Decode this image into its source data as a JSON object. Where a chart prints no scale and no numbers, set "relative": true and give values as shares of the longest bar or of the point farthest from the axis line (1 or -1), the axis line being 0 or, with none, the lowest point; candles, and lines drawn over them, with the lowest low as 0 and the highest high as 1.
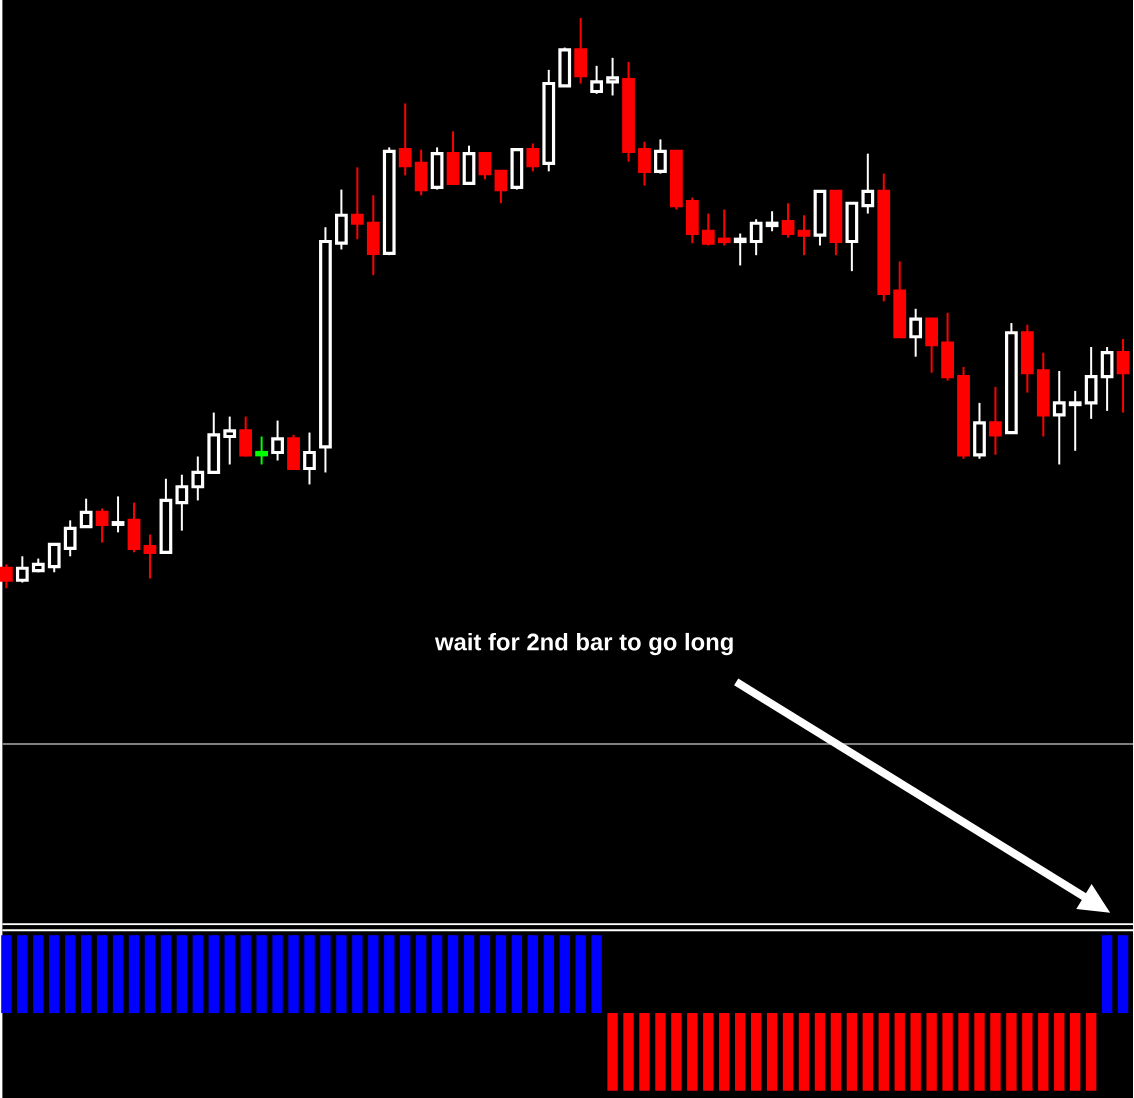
{
  "chart_data": [
    {
      "type": "candlestick",
      "relative": true,
      "categories": [
        null,
        null,
        null,
        null,
        null,
        null,
        null,
        null,
        null,
        null,
        null,
        null,
        null,
        null,
        null,
        null,
        null,
        null,
        null,
        null,
        null,
        null,
        null,
        null,
        null,
        null,
        null,
        null,
        null,
        null,
        null,
        null,
        null,
        null,
        null,
        null,
        null,
        null,
        null,
        null,
        null,
        null,
        null,
        null,
        null,
        null,
        null,
        null,
        null,
        null,
        null,
        null,
        null,
        null,
        null,
        null,
        null,
        null,
        null,
        null,
        null,
        null,
        null,
        null,
        null,
        null,
        null,
        null,
        null,
        null,
        null
      ],
      "ohlc": [
        [
          0.035,
          0.042,
          0,
          0.014
        ],
        [
          0.014,
          0.056,
          0.01,
          0.035
        ],
        [
          0.031,
          0.052,
          0.028,
          0.042
        ],
        [
          0.038,
          0.077,
          0.028,
          0.077
        ],
        [
          0.07,
          0.119,
          0.056,
          0.105
        ],
        [
          0.108,
          0.157,
          0.108,
          0.133
        ],
        [
          0.133,
          0.14,
          0.08,
          0.112
        ],
        [
          0.112,
          0.161,
          0.098,
          0.115
        ],
        [
          0.119,
          0.15,
          0.063,
          0.07
        ],
        [
          0.073,
          0.094,
          0.017,
          0.063
        ],
        [
          0.063,
          0.192,
          0.063,
          0.154
        ],
        [
          0.15,
          0.199,
          0.101,
          0.178
        ],
        [
          0.178,
          0.231,
          0.154,
          0.203
        ],
        [
          0.203,
          0.308,
          0.203,
          0.269
        ],
        [
          0.266,
          0.301,
          0.217,
          0.276
        ],
        [
          0.276,
          0.301,
          0.231,
          0.234
        ],
        [
          0.234,
          0.266,
          0.217,
          0.238
        ],
        [
          0.238,
          0.294,
          0.224,
          0.262
        ],
        [
          0.262,
          0.269,
          0.21,
          0.21
        ],
        [
          0.21,
          0.273,
          0.182,
          0.238
        ],
        [
          0.248,
          0.633,
          0.203,
          0.608
        ],
        [
          0.605,
          0.699,
          0.594,
          0.654
        ],
        [
          0.654,
          0.738,
          0.612,
          0.64
        ],
        [
          0.64,
          0.689,
          0.549,
          0.587
        ],
        [
          0.587,
          0.773,
          0.584,
          0.766
        ],
        [
          0.769,
          0.85,
          0.724,
          0.741
        ],
        [
          0.745,
          0.769,
          0.689,
          0.699
        ],
        [
          0.703,
          0.773,
          0.699,
          0.762
        ],
        [
          0.762,
          0.801,
          0.71,
          0.71
        ],
        [
          0.71,
          0.776,
          0.71,
          0.762
        ],
        [
          0.762,
          0.762,
          0.717,
          0.727
        ],
        [
          0.731,
          0.731,
          0.675,
          0.699
        ],
        [
          0.703,
          0.769,
          0.699,
          0.769
        ],
        [
          0.769,
          0.78,
          0.731,
          0.741
        ],
        [
          0.745,
          0.909,
          0.731,
          0.885
        ],
        [
          0.881,
          0.948,
          0.881,
          0.944
        ],
        [
          0.944,
          1,
          0.885,
          0.899
        ],
        [
          0.871,
          0.916,
          0.867,
          0.888
        ],
        [
          0.888,
          0.93,
          0.864,
          0.895
        ],
        [
          0.892,
          0.923,
          0.748,
          0.766
        ],
        [
          0.769,
          0.783,
          0.706,
          0.731
        ],
        [
          0.731,
          0.787,
          0.727,
          0.766
        ],
        [
          0.766,
          0.766,
          0.664,
          0.671
        ],
        [
          0.678,
          0.685,
          0.605,
          0.622
        ],
        [
          0.626,
          0.657,
          0.601,
          0.605
        ],
        [
          0.612,
          0.664,
          0.601,
          0.608
        ],
        [
          0.608,
          0.622,
          0.566,
          0.612
        ],
        [
          0.608,
          0.647,
          0.584,
          0.64
        ],
        [
          0.636,
          0.661,
          0.626,
          0.64
        ],
        [
          0.643,
          0.675,
          0.615,
          0.622
        ],
        [
          0.626,
          0.654,
          0.584,
          0.619
        ],
        [
          0.619,
          0.696,
          0.601,
          0.696
        ],
        [
          0.696,
          0.696,
          0.584,
          0.608
        ],
        [
          0.608,
          0.675,
          0.556,
          0.675
        ],
        [
          0.671,
          0.762,
          0.657,
          0.696
        ],
        [
          0.696,
          0.727,
          0.503,
          0.517
        ],
        [
          0.521,
          0.573,
          0.441,
          0.441
        ],
        [
          0.441,
          0.49,
          0.406,
          0.472
        ],
        [
          0.472,
          0.472,
          0.378,
          0.427
        ],
        [
          0.43,
          0.483,
          0.364,
          0.371
        ],
        [
          0.371,
          0.388,
          0.227,
          0.234
        ],
        [
          0.234,
          0.325,
          0.227,
          0.29
        ],
        [
          0.29,
          0.353,
          0.234,
          0.269
        ],
        [
          0.273,
          0.465,
          0.273,
          0.448
        ],
        [
          0.448,
          0.462,
          0.343,
          0.378
        ],
        [
          0.381,
          0.413,
          0.266,
          0.304
        ],
        [
          0.304,
          0.381,
          0.217,
          0.325
        ],
        [
          0.322,
          0.346,
          0.241,
          0.325
        ],
        [
          0.325,
          0.423,
          0.297,
          0.371
        ],
        [
          0.371,
          0.423,
          0.311,
          0.413
        ],
        [
          0.413,
          0.437,
          0.308,
          0.378
        ]
      ],
      "colors": [
        "#ff0000",
        "#ffffff",
        "#ffffff",
        "#ffffff",
        "#ffffff",
        "#ffffff",
        "#ff0000",
        "#ffffff",
        "#ff0000",
        "#ff0000",
        "#ffffff",
        "#ffffff",
        "#ffffff",
        "#ffffff",
        "#ffffff",
        "#ff0000",
        "#00ff00",
        "#ffffff",
        "#ff0000",
        "#ffffff",
        "#ffffff",
        "#ffffff",
        "#ff0000",
        "#ff0000",
        "#ffffff",
        "#ff0000",
        "#ff0000",
        "#ffffff",
        "#ff0000",
        "#ffffff",
        "#ff0000",
        "#ff0000",
        "#ffffff",
        "#ff0000",
        "#ffffff",
        "#ffffff",
        "#ff0000",
        "#ffffff",
        "#ffffff",
        "#ff0000",
        "#ff0000",
        "#ffffff",
        "#ff0000",
        "#ff0000",
        "#ff0000",
        "#ff0000",
        "#ffffff",
        "#ffffff",
        "#ffffff",
        "#ff0000",
        "#ff0000",
        "#ffffff",
        "#ff0000",
        "#ffffff",
        "#ffffff",
        "#ff0000",
        "#ff0000",
        "#ffffff",
        "#ff0000",
        "#ff0000",
        "#ff0000",
        "#ffffff",
        "#ff0000",
        "#ffffff",
        "#ff0000",
        "#ff0000",
        "#ffffff",
        "#ffffff",
        "#ffffff",
        "#ffffff",
        "#ff0000"
      ],
      "ref_lines": [
        {
          "axis": "y",
          "value": -0.273,
          "color": "#808080"
        }
      ],
      "annotations": [
        "wait for 2nd bar to go long"
      ]
    },
    {
      "type": "bar",
      "relative": true,
      "categories": [
        null,
        null,
        null,
        null,
        null,
        null,
        null,
        null,
        null,
        null,
        null,
        null,
        null,
        null,
        null,
        null,
        null,
        null,
        null,
        null,
        null,
        null,
        null,
        null,
        null,
        null,
        null,
        null,
        null,
        null,
        null,
        null,
        null,
        null,
        null,
        null,
        null,
        null,
        null,
        null,
        null,
        null,
        null,
        null,
        null,
        null,
        null,
        null,
        null,
        null,
        null,
        null,
        null,
        null,
        null,
        null,
        null,
        null,
        null,
        null,
        null,
        null,
        null,
        null,
        null,
        null,
        null,
        null,
        null,
        null,
        null
      ],
      "values": [
        1,
        1,
        1,
        1,
        1,
        1,
        1,
        1,
        1,
        1,
        1,
        1,
        1,
        1,
        1,
        1,
        1,
        1,
        1,
        1,
        1,
        1,
        1,
        1,
        1,
        1,
        1,
        1,
        1,
        1,
        1,
        1,
        1,
        1,
        1,
        1,
        1,
        1,
        -1,
        -1,
        -1,
        -1,
        -1,
        -1,
        -1,
        -1,
        -1,
        -1,
        -1,
        -1,
        -1,
        -1,
        -1,
        -1,
        -1,
        -1,
        -1,
        -1,
        -1,
        -1,
        -1,
        -1,
        -1,
        -1,
        -1,
        -1,
        -1,
        -1,
        -1,
        1,
        1
      ],
      "colors": [
        "#0000ff",
        "#0000ff",
        "#0000ff",
        "#0000ff",
        "#0000ff",
        "#0000ff",
        "#0000ff",
        "#0000ff",
        "#0000ff",
        "#0000ff",
        "#0000ff",
        "#0000ff",
        "#0000ff",
        "#0000ff",
        "#0000ff",
        "#0000ff",
        "#0000ff",
        "#0000ff",
        "#0000ff",
        "#0000ff",
        "#0000ff",
        "#0000ff",
        "#0000ff",
        "#0000ff",
        "#0000ff",
        "#0000ff",
        "#0000ff",
        "#0000ff",
        "#0000ff",
        "#0000ff",
        "#0000ff",
        "#0000ff",
        "#0000ff",
        "#0000ff",
        "#0000ff",
        "#0000ff",
        "#0000ff",
        "#0000ff",
        "#ff0000",
        "#ff0000",
        "#ff0000",
        "#ff0000",
        "#ff0000",
        "#ff0000",
        "#ff0000",
        "#ff0000",
        "#ff0000",
        "#ff0000",
        "#ff0000",
        "#ff0000",
        "#ff0000",
        "#ff0000",
        "#ff0000",
        "#ff0000",
        "#ff0000",
        "#ff0000",
        "#ff0000",
        "#ff0000",
        "#ff0000",
        "#ff0000",
        "#ff0000",
        "#ff0000",
        "#ff0000",
        "#ff0000",
        "#ff0000",
        "#ff0000",
        "#ff0000",
        "#ff0000",
        "#ff0000",
        "#0000ff",
        "#0000ff"
      ]
    }
  ]
}
